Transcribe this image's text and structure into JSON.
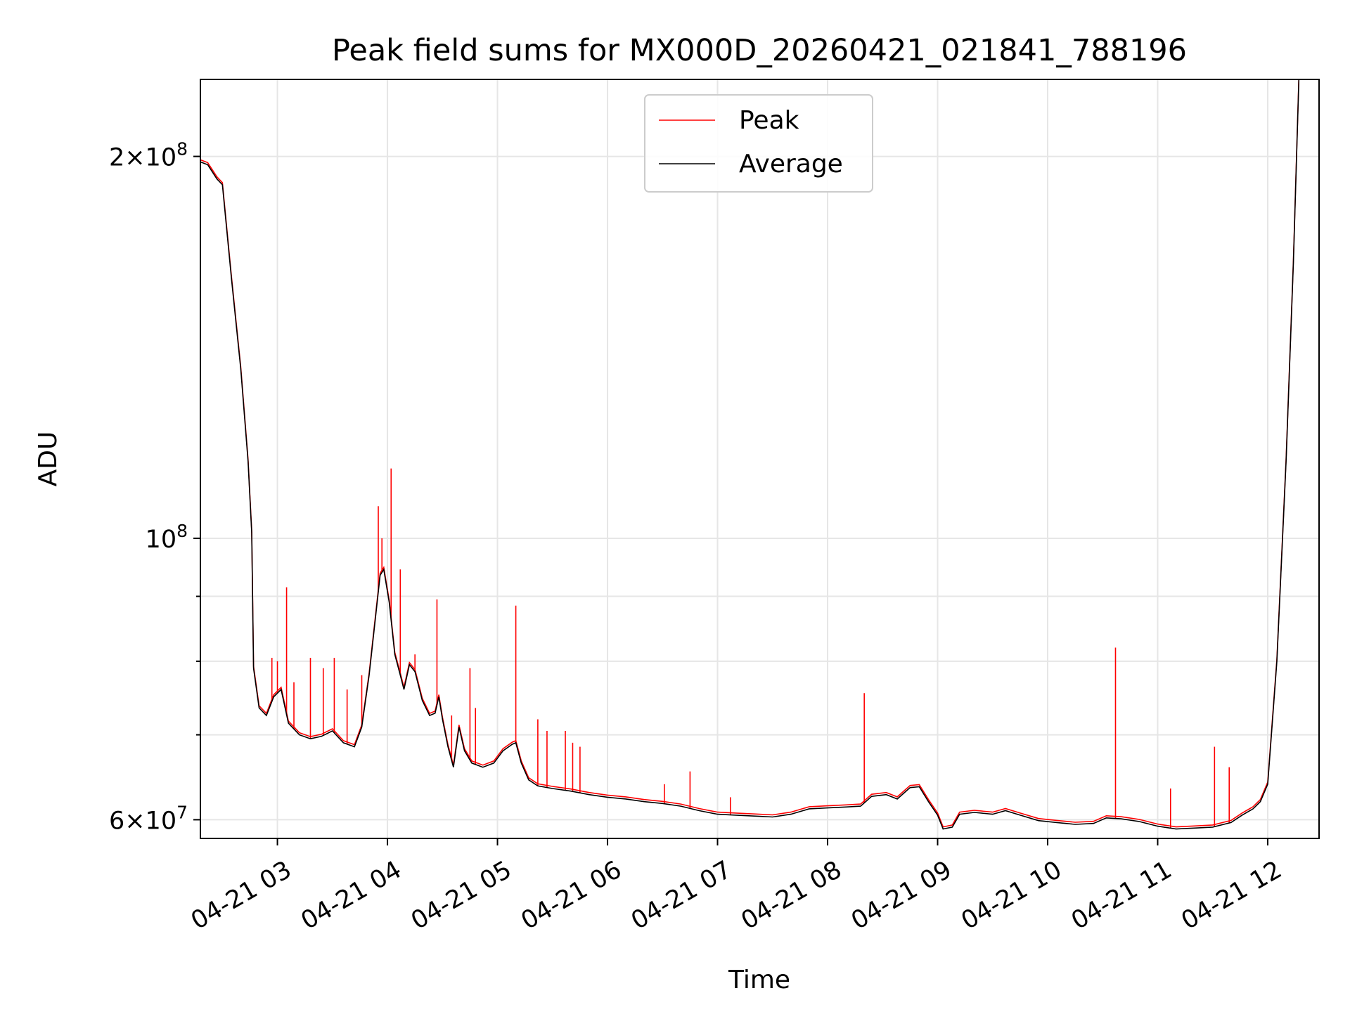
{
  "chart_data": {
    "type": "line",
    "title": "Peak field sums for MX000D_20260421_021841_788196",
    "xlabel": "Time",
    "ylabel": "ADU",
    "yscale": "log",
    "ylim": [
      58000000,
      230000000
    ],
    "xlim": [
      "2026-04-21 02:18",
      "2026-04-21 12:28"
    ],
    "x_ticks": [
      "04-21 03",
      "04-21 04",
      "04-21 05",
      "04-21 06",
      "04-21 07",
      "04-21 08",
      "04-21 09",
      "04-21 10",
      "04-21 11",
      "04-21 12"
    ],
    "y_major_ticks": [
      {
        "value": 60000000,
        "base": "6×10",
        "exp": "7"
      },
      {
        "value": 100000000,
        "base": "10",
        "exp": "8"
      },
      {
        "value": 200000000,
        "base": "2×10",
        "exp": "8"
      }
    ],
    "y_minor_ticks": [
      70000000,
      80000000,
      90000000
    ],
    "grid": true,
    "legend_position": "top-center",
    "series": [
      {
        "name": "Average",
        "color": "#000000",
        "points": [
          [
            "2026-04-21 02:18",
            198000000
          ],
          [
            "2026-04-21 02:22",
            197000000
          ],
          [
            "2026-04-21 02:27",
            192000000
          ],
          [
            "2026-04-21 02:30",
            190000000
          ],
          [
            "2026-04-21 02:35",
            160000000
          ],
          [
            "2026-04-21 02:40",
            136000000
          ],
          [
            "2026-04-21 02:44",
            115000000
          ],
          [
            "2026-04-21 02:46",
            101000000
          ],
          [
            "2026-04-21 02:47",
            79000000
          ],
          [
            "2026-04-21 02:50",
            73500000
          ],
          [
            "2026-04-21 02:54",
            72500000
          ],
          [
            "2026-04-21 02:58",
            75000000
          ],
          [
            "2026-04-21 03:02",
            76000000
          ],
          [
            "2026-04-21 03:06",
            71500000
          ],
          [
            "2026-04-21 03:12",
            70000000
          ],
          [
            "2026-04-21 03:18",
            69500000
          ],
          [
            "2026-04-21 03:24",
            69800000
          ],
          [
            "2026-04-21 03:30",
            70500000
          ],
          [
            "2026-04-21 03:36",
            69000000
          ],
          [
            "2026-04-21 03:42",
            68500000
          ],
          [
            "2026-04-21 03:46",
            71000000
          ],
          [
            "2026-04-21 03:50",
            78000000
          ],
          [
            "2026-04-21 03:54",
            88000000
          ],
          [
            "2026-04-21 03:56",
            93500000
          ],
          [
            "2026-04-21 03:58",
            94500000
          ],
          [
            "2026-04-21 04:01",
            89000000
          ],
          [
            "2026-04-21 04:04",
            81000000
          ],
          [
            "2026-04-21 04:07",
            78000000
          ],
          [
            "2026-04-21 04:09",
            76000000
          ],
          [
            "2026-04-21 04:12",
            79500000
          ],
          [
            "2026-04-21 04:15",
            78500000
          ],
          [
            "2026-04-21 04:19",
            74500000
          ],
          [
            "2026-04-21 04:23",
            72500000
          ],
          [
            "2026-04-21 04:26",
            72800000
          ],
          [
            "2026-04-21 04:28",
            75000000
          ],
          [
            "2026-04-21 04:30",
            72000000
          ],
          [
            "2026-04-21 04:33",
            68500000
          ],
          [
            "2026-04-21 04:36",
            66000000
          ],
          [
            "2026-04-21 04:39",
            71000000
          ],
          [
            "2026-04-21 04:42",
            68000000
          ],
          [
            "2026-04-21 04:46",
            66500000
          ],
          [
            "2026-04-21 04:52",
            66000000
          ],
          [
            "2026-04-21 04:58",
            66500000
          ],
          [
            "2026-04-21 05:03",
            68000000
          ],
          [
            "2026-04-21 05:08",
            68800000
          ],
          [
            "2026-04-21 05:10",
            69000000
          ],
          [
            "2026-04-21 05:13",
            66500000
          ],
          [
            "2026-04-21 05:17",
            64500000
          ],
          [
            "2026-04-21 05:22",
            63800000
          ],
          [
            "2026-04-21 05:30",
            63500000
          ],
          [
            "2026-04-21 05:40",
            63200000
          ],
          [
            "2026-04-21 05:50",
            62800000
          ],
          [
            "2026-04-21 06:00",
            62500000
          ],
          [
            "2026-04-21 06:10",
            62300000
          ],
          [
            "2026-04-21 06:20",
            62000000
          ],
          [
            "2026-04-21 06:30",
            61800000
          ],
          [
            "2026-04-21 06:40",
            61500000
          ],
          [
            "2026-04-21 06:50",
            61000000
          ],
          [
            "2026-04-21 07:00",
            60600000
          ],
          [
            "2026-04-21 07:10",
            60500000
          ],
          [
            "2026-04-21 07:20",
            60400000
          ],
          [
            "2026-04-21 07:30",
            60300000
          ],
          [
            "2026-04-21 07:40",
            60600000
          ],
          [
            "2026-04-21 07:50",
            61200000
          ],
          [
            "2026-04-21 08:00",
            61300000
          ],
          [
            "2026-04-21 08:10",
            61400000
          ],
          [
            "2026-04-21 08:18",
            61500000
          ],
          [
            "2026-04-21 08:24",
            62600000
          ],
          [
            "2026-04-21 08:32",
            62800000
          ],
          [
            "2026-04-21 08:38",
            62300000
          ],
          [
            "2026-04-21 08:45",
            63600000
          ],
          [
            "2026-04-21 08:50",
            63700000
          ],
          [
            "2026-04-21 08:55",
            62000000
          ],
          [
            "2026-04-21 09:00",
            60500000
          ],
          [
            "2026-04-21 09:03",
            59000000
          ],
          [
            "2026-04-21 09:08",
            59200000
          ],
          [
            "2026-04-21 09:12",
            60600000
          ],
          [
            "2026-04-21 09:20",
            60800000
          ],
          [
            "2026-04-21 09:30",
            60600000
          ],
          [
            "2026-04-21 09:37",
            61000000
          ],
          [
            "2026-04-21 09:45",
            60500000
          ],
          [
            "2026-04-21 09:55",
            59900000
          ],
          [
            "2026-04-21 10:05",
            59700000
          ],
          [
            "2026-04-21 10:15",
            59500000
          ],
          [
            "2026-04-21 10:25",
            59600000
          ],
          [
            "2026-04-21 10:32",
            60200000
          ],
          [
            "2026-04-21 10:40",
            60100000
          ],
          [
            "2026-04-21 10:50",
            59800000
          ],
          [
            "2026-04-21 11:00",
            59300000
          ],
          [
            "2026-04-21 11:10",
            59000000
          ],
          [
            "2026-04-21 11:20",
            59100000
          ],
          [
            "2026-04-21 11:30",
            59200000
          ],
          [
            "2026-04-21 11:40",
            59700000
          ],
          [
            "2026-04-21 11:46",
            60500000
          ],
          [
            "2026-04-21 11:52",
            61200000
          ],
          [
            "2026-04-21 11:56",
            62000000
          ],
          [
            "2026-04-21 12:00",
            64000000
          ],
          [
            "2026-04-21 12:05",
            80000000
          ],
          [
            "2026-04-21 12:10",
            115000000
          ],
          [
            "2026-04-21 12:14",
            165000000
          ],
          [
            "2026-04-21 12:17",
            230000000
          ]
        ]
      },
      {
        "name": "Peak",
        "color": "#ff0000",
        "spikes": [
          [
            "2026-04-21 02:57",
            80500000
          ],
          [
            "2026-04-21 03:00",
            80000000
          ],
          [
            "2026-04-21 03:05",
            91500000
          ],
          [
            "2026-04-21 03:09",
            77000000
          ],
          [
            "2026-04-21 03:18",
            80500000
          ],
          [
            "2026-04-21 03:25",
            79000000
          ],
          [
            "2026-04-21 03:31",
            80500000
          ],
          [
            "2026-04-21 03:38",
            76000000
          ],
          [
            "2026-04-21 03:46",
            78000000
          ],
          [
            "2026-04-21 03:55",
            106000000
          ],
          [
            "2026-04-21 03:57",
            100000000
          ],
          [
            "2026-04-21 04:02",
            113500000
          ],
          [
            "2026-04-21 04:07",
            94500000
          ],
          [
            "2026-04-21 04:15",
            81000000
          ],
          [
            "2026-04-21 04:27",
            89500000
          ],
          [
            "2026-04-21 04:35",
            72500000
          ],
          [
            "2026-04-21 04:45",
            79000000
          ],
          [
            "2026-04-21 04:48",
            73500000
          ],
          [
            "2026-04-21 05:10",
            88500000
          ],
          [
            "2026-04-21 05:22",
            72000000
          ],
          [
            "2026-04-21 05:27",
            70500000
          ],
          [
            "2026-04-21 05:37",
            70500000
          ],
          [
            "2026-04-21 05:41",
            69000000
          ],
          [
            "2026-04-21 05:45",
            68500000
          ],
          [
            "2026-04-21 06:31",
            64000000
          ],
          [
            "2026-04-21 06:45",
            65500000
          ],
          [
            "2026-04-21 07:07",
            62500000
          ],
          [
            "2026-04-21 08:20",
            75500000
          ],
          [
            "2026-04-21 10:37",
            82000000
          ],
          [
            "2026-04-21 11:07",
            63500000
          ],
          [
            "2026-04-21 11:31",
            68500000
          ],
          [
            "2026-04-21 11:39",
            66000000
          ]
        ]
      }
    ]
  }
}
